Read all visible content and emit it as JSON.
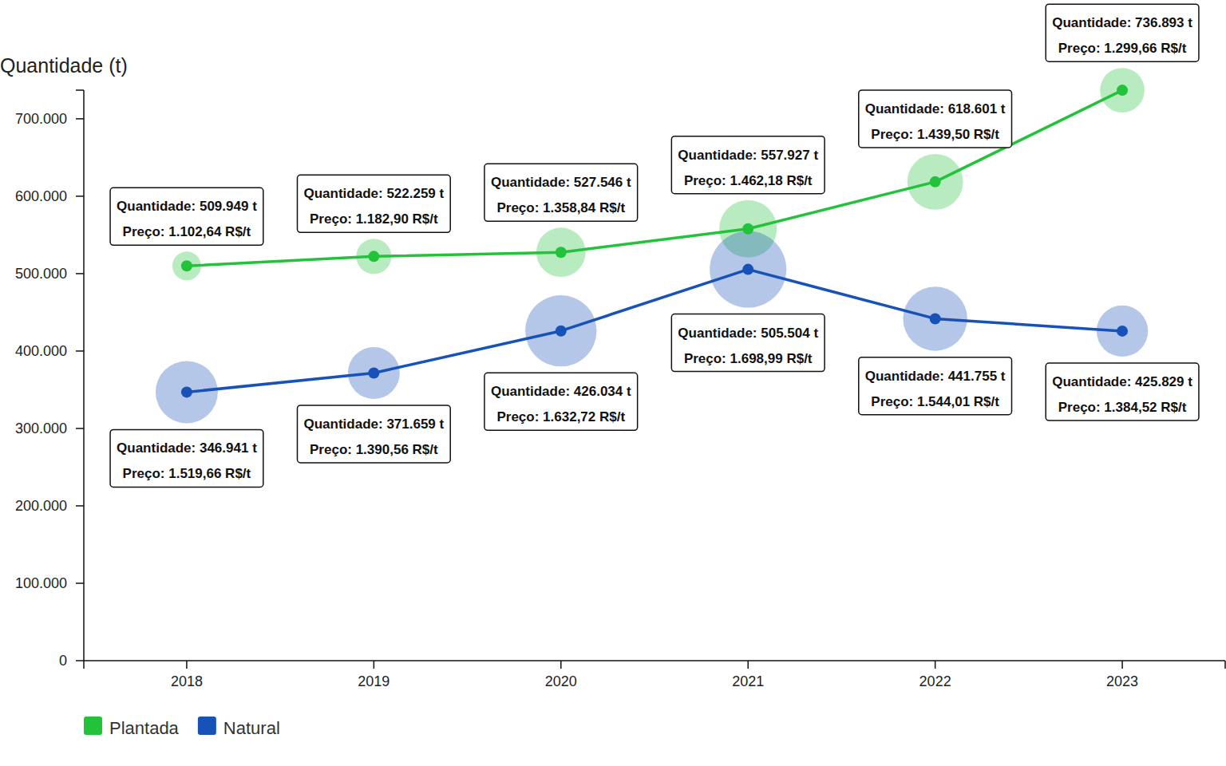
{
  "chart_data": {
    "type": "line",
    "y_label": "Quantidade (t)",
    "categories": [
      "2018",
      "2019",
      "2020",
      "2021",
      "2022",
      "2023"
    ],
    "ylim": [
      0,
      737000
    ],
    "yticks": [
      0,
      {
        "value": 100000,
        "label": "100.000"
      },
      {
        "value": 200000,
        "label": "200.000"
      },
      {
        "value": 300000,
        "label": "300.000"
      },
      {
        "value": 400000,
        "label": "400.000"
      },
      {
        "value": 500000,
        "label": "500.000"
      },
      {
        "value": 600000,
        "label": "600.000"
      },
      {
        "value": 700000,
        "label": "700.000"
      }
    ],
    "grid": false,
    "legend": "bottom-left",
    "data_labels": true,
    "marker": "circle",
    "series": [
      {
        "name": "Plantada",
        "color": "#22c33a",
        "values": [
          509949,
          522259,
          527546,
          557927,
          618601,
          736893
        ],
        "value_labels": [
          "Quantidade: 509.949 t",
          "Quantidade: 522.259 t",
          "Quantidade: 527.546 t",
          "Quantidade: 557.927 t",
          "Quantidade: 618.601 t",
          "Quantidade: 736.893 t"
        ],
        "sizes": [
          1102.64,
          1182.9,
          1358.84,
          1462.18,
          1439.5,
          1299.66
        ],
        "size_labels": [
          "Preço: 1.102,64 R$/t",
          "Preço: 1.182,90 R$/t",
          "Preço: 1.358,84 R$/t",
          "Preço: 1.462,18 R$/t",
          "Preço: 1.439,50 R$/t",
          "Preço: 1.299,66 R$/t"
        ]
      },
      {
        "name": "Natural",
        "color": "#1652b8",
        "values": [
          346941,
          371659,
          426034,
          505504,
          441755,
          425829
        ],
        "value_labels": [
          "Quantidade: 346.941 t",
          "Quantidade: 371.659 t",
          "Quantidade: 426.034 t",
          "Quantidade: 505.504 t",
          "Quantidade: 441.755 t",
          "Quantidade: 425.829 t"
        ],
        "sizes": [
          1519.66,
          1390.56,
          1632.72,
          1698.99,
          1544.01,
          1384.52
        ],
        "size_labels": [
          "Preço: 1.519,66 R$/t",
          "Preço: 1.390,56 R$/t",
          "Preço: 1.632,72 R$/t",
          "Preço: 1.698,99 R$/t",
          "Preço: 1.544,01 R$/t",
          "Preço: 1.384,52 R$/t"
        ]
      }
    ]
  }
}
